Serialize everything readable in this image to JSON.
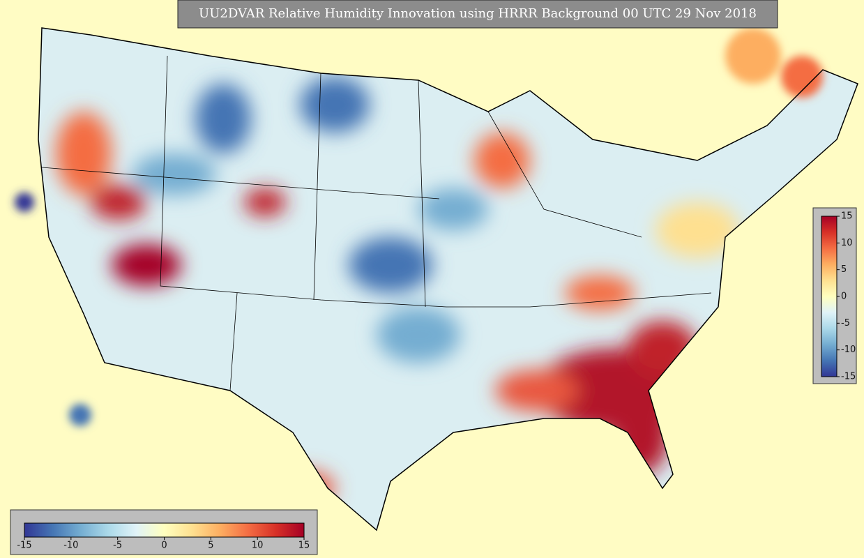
{
  "title": "UU2DVAR Relative Humidity Innovation using HRRR Background 00 UTC 29 Nov 2018",
  "colorbar": {
    "range": [
      -15,
      15
    ],
    "ticks": [
      -15,
      -10,
      -5,
      0,
      5,
      10,
      15
    ],
    "colors": [
      "#313695",
      "#4575b4",
      "#74add1",
      "#abd9e9",
      "#e0f3f8",
      "#ffffbf",
      "#fee090",
      "#fdae61",
      "#f46d43",
      "#d73027",
      "#a50026"
    ]
  }
}
